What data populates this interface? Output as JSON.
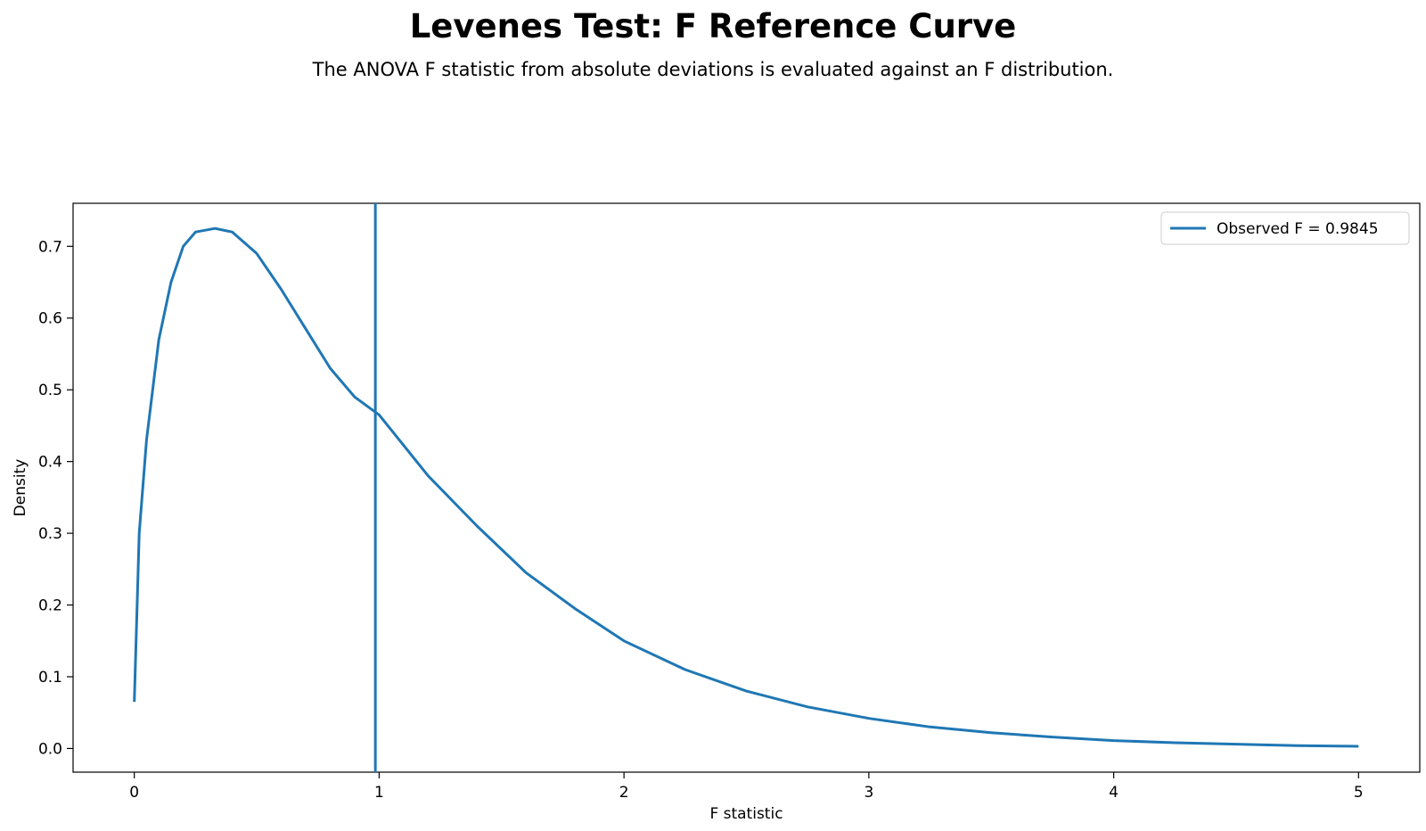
{
  "title": "Levenes Test: F Reference Curve",
  "subtitle": "The ANOVA F statistic from absolute deviations is evaluated against an F distribution.",
  "chart_data": {
    "type": "line",
    "xlabel": "F statistic",
    "ylabel": "Density",
    "xlim": [
      -0.25,
      5.25
    ],
    "ylim": [
      -0.033,
      0.76
    ],
    "x_ticks": [
      0,
      1,
      2,
      3,
      4,
      5
    ],
    "y_ticks": [
      0.0,
      0.1,
      0.2,
      0.3,
      0.4,
      0.5,
      0.6,
      0.7
    ],
    "grid": false,
    "legend_position": "top-right",
    "color": "#1f77b4",
    "series": [
      {
        "x": [
          0.0,
          0.02,
          0.05,
          0.1,
          0.15,
          0.2,
          0.25,
          0.33,
          0.4,
          0.5,
          0.6,
          0.7,
          0.8,
          0.9,
          1.0,
          1.2,
          1.4,
          1.6,
          1.8,
          2.0,
          2.25,
          2.5,
          2.75,
          3.0,
          3.25,
          3.5,
          3.75,
          4.0,
          4.25,
          4.5,
          4.75,
          5.0
        ],
        "y": [
          0.065,
          0.3,
          0.43,
          0.57,
          0.65,
          0.7,
          0.72,
          0.725,
          0.72,
          0.69,
          0.64,
          0.585,
          0.53,
          0.49,
          0.465,
          0.38,
          0.31,
          0.245,
          0.195,
          0.15,
          0.11,
          0.08,
          0.058,
          0.042,
          0.03,
          0.022,
          0.016,
          0.011,
          0.008,
          0.006,
          0.004,
          0.003
        ]
      }
    ],
    "observed": {
      "label": "Observed F = 0.9845",
      "value": 0.9845
    }
  }
}
